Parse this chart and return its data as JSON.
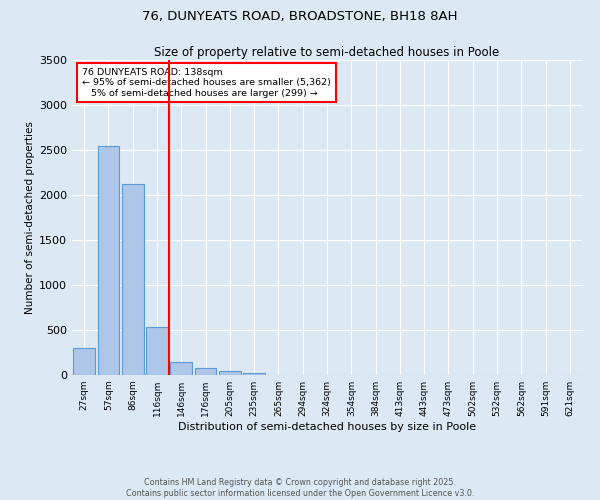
{
  "title": "76, DUNYEATS ROAD, BROADSTONE, BH18 8AH",
  "subtitle": "Size of property relative to semi-detached houses in Poole",
  "xlabel": "Distribution of semi-detached houses by size in Poole",
  "ylabel": "Number of semi-detached properties",
  "bin_labels": [
    "27sqm",
    "57sqm",
    "86sqm",
    "116sqm",
    "146sqm",
    "176sqm",
    "205sqm",
    "235sqm",
    "265sqm",
    "294sqm",
    "324sqm",
    "354sqm",
    "384sqm",
    "413sqm",
    "443sqm",
    "473sqm",
    "502sqm",
    "532sqm",
    "562sqm",
    "591sqm",
    "621sqm"
  ],
  "bar_values": [
    300,
    2540,
    2120,
    530,
    150,
    80,
    40,
    20,
    0,
    0,
    0,
    0,
    0,
    0,
    0,
    0,
    0,
    0,
    0,
    0,
    0
  ],
  "bar_color": "#aec6e8",
  "bar_edge_color": "#5b9bd5",
  "property_line_bin": 4,
  "property_line_color": "red",
  "annotation_text": "76 DUNYEATS ROAD: 138sqm\n← 95% of semi-detached houses are smaller (5,362)\n   5% of semi-detached houses are larger (299) →",
  "annotation_box_color": "white",
  "annotation_box_edge_color": "red",
  "ylim": [
    0,
    3500
  ],
  "yticks": [
    0,
    500,
    1000,
    1500,
    2000,
    2500,
    3000,
    3500
  ],
  "bg_color": "#dce9f5",
  "footer_line1": "Contains HM Land Registry data © Crown copyright and database right 2025.",
  "footer_line2": "Contains public sector information licensed under the Open Government Licence v3.0."
}
